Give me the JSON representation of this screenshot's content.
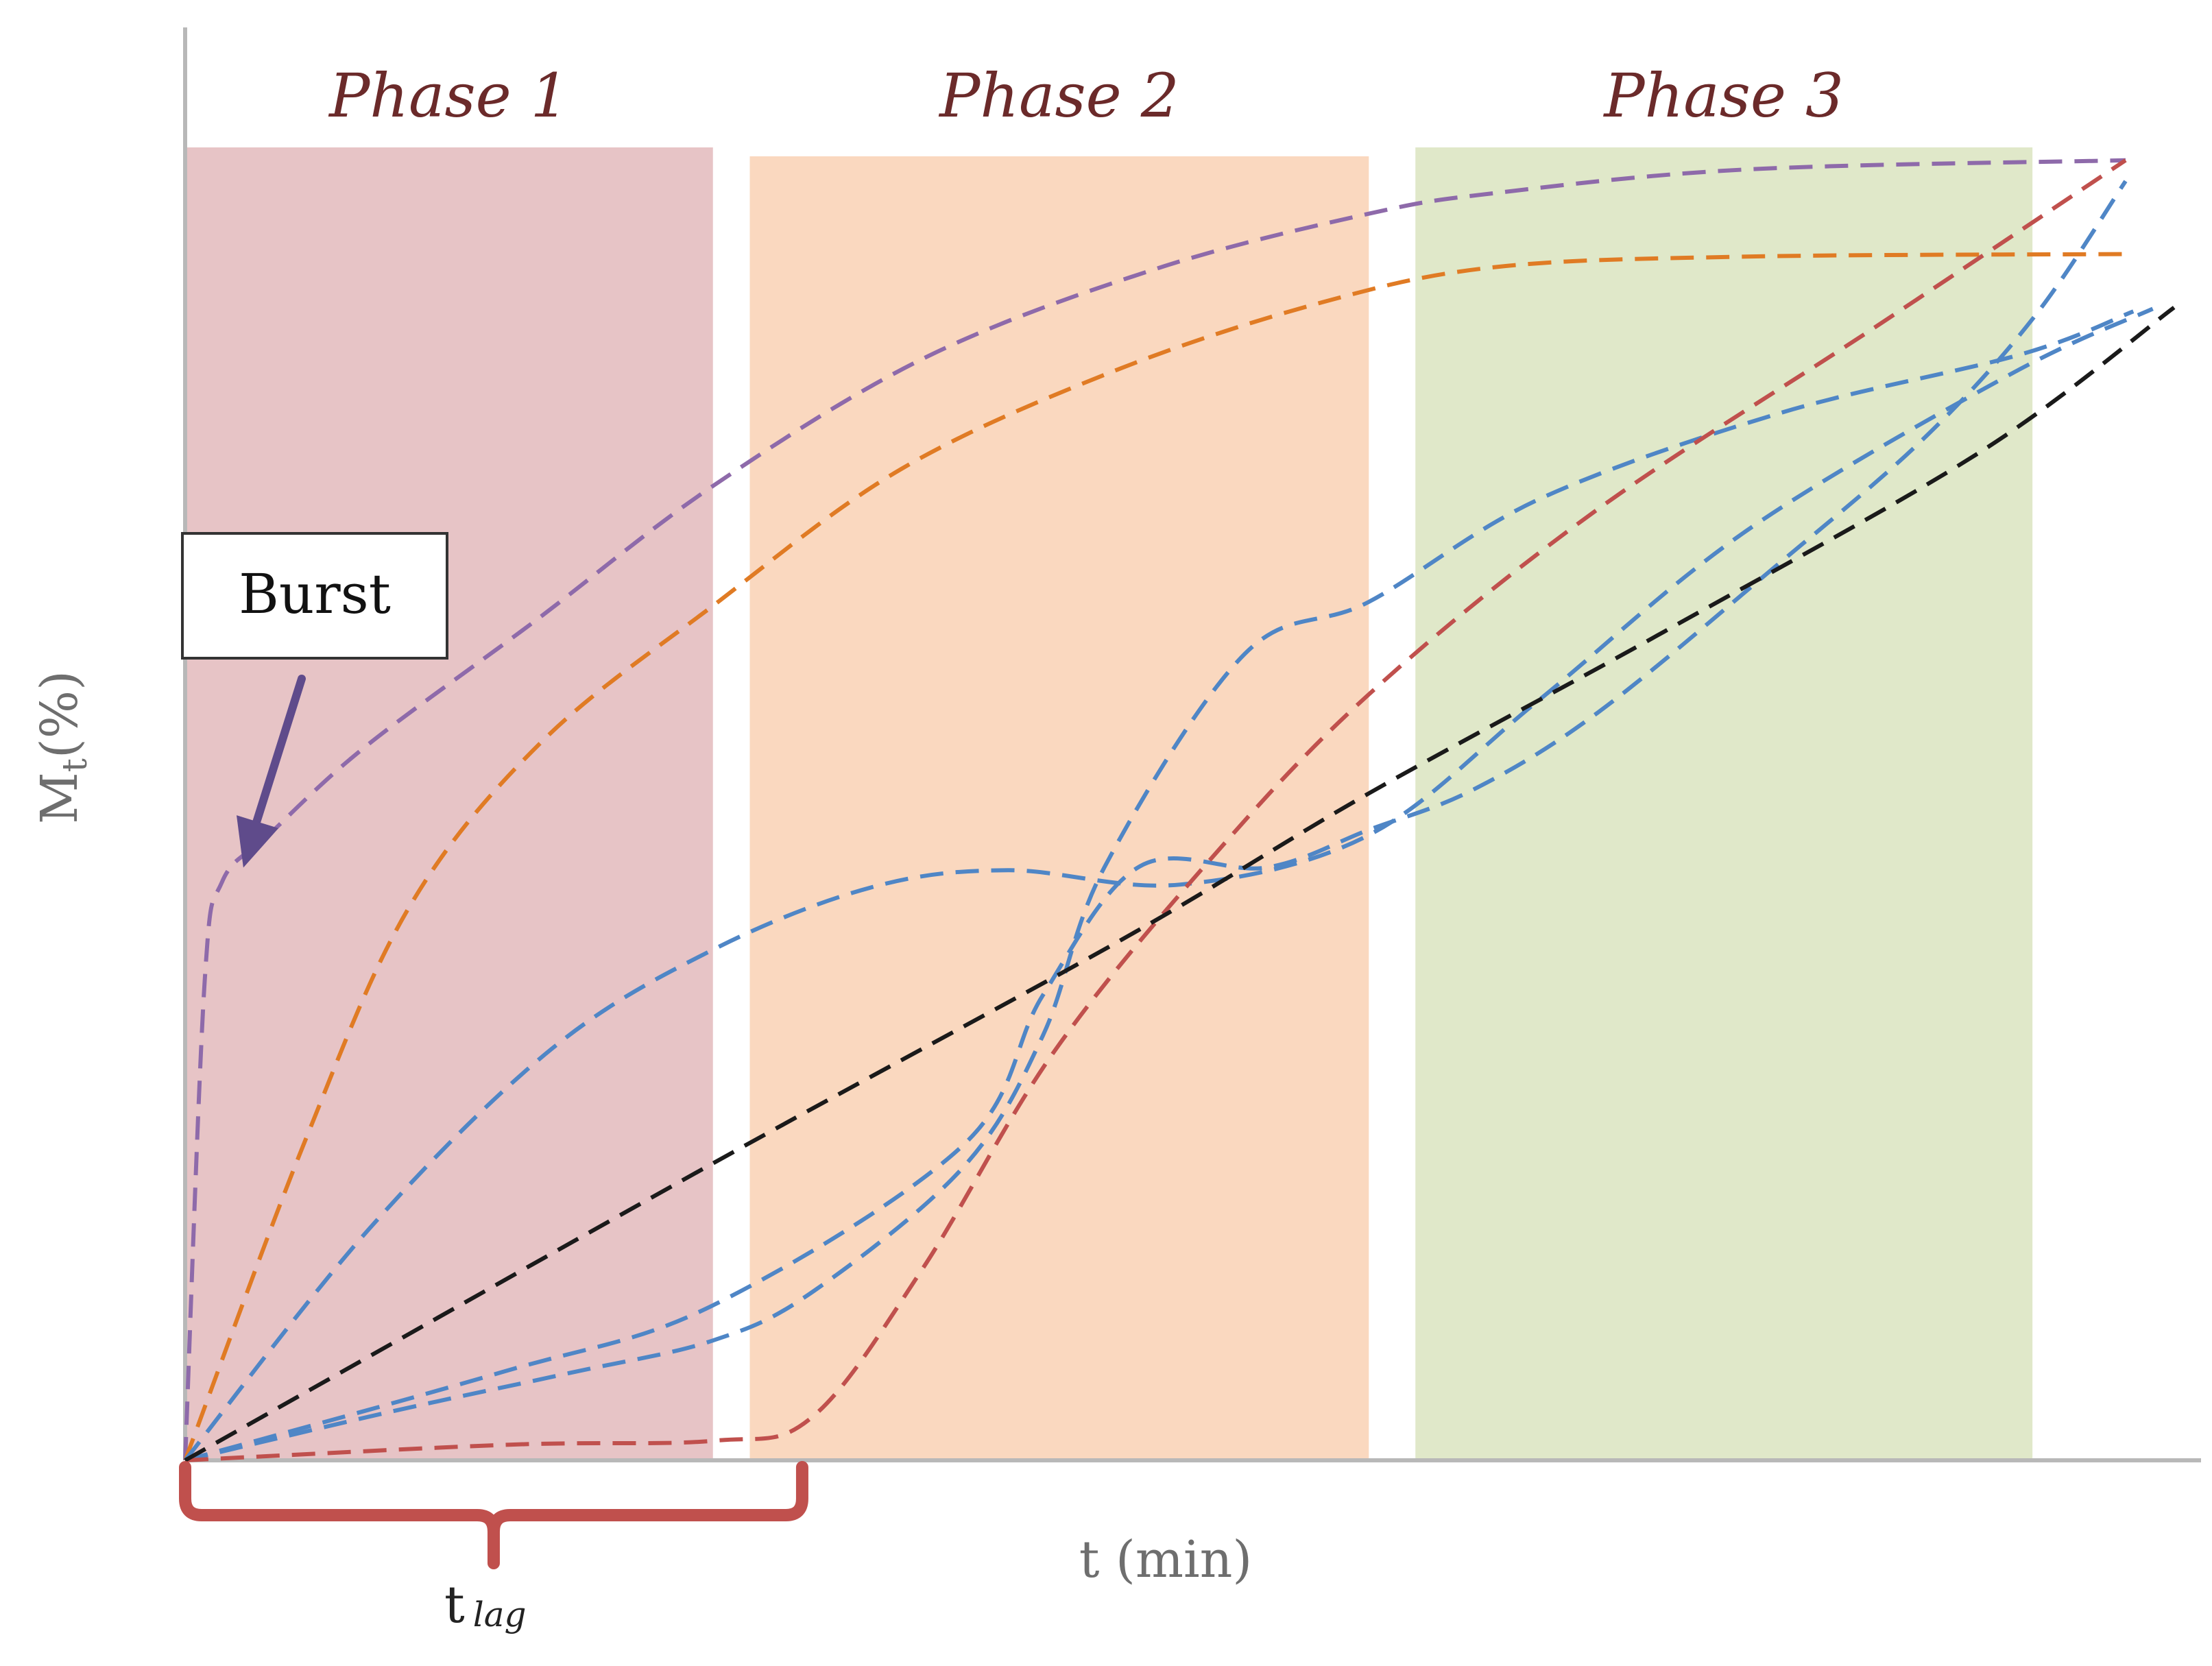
{
  "chart_data": {
    "type": "line",
    "title": "",
    "xlabel": "t (min)",
    "ylabel": {
      "main": "M",
      "sub": "t",
      "unit": "(%)"
    },
    "xlim": [
      0,
      100
    ],
    "ylim": [
      0,
      100
    ],
    "grid": false,
    "legend": "none",
    "phases": [
      {
        "label": "Phase 1",
        "x_start": 0,
        "x_end": 27.2,
        "color": "#e7c4c6"
      },
      {
        "label": "Phase 2",
        "x_start": 29.1,
        "x_end": 61.0,
        "color": "#fad8bf"
      },
      {
        "label": "Phase 3",
        "x_start": 63.4,
        "x_end": 95.2,
        "color": "#e0e8c9"
      }
    ],
    "annotations": {
      "burst": {
        "label": "Burst",
        "x": 3.0,
        "y": 45.5
      },
      "lag": {
        "label_main": "t",
        "label_sub": "lag",
        "x_start": 0,
        "x_end": 31.8
      }
    },
    "series": [
      {
        "color": "#8e6aaa",
        "x": [
          0,
          1.0,
          1.9,
          4.3,
          9.3,
          18.0,
          27.2,
          38.2,
          50.1,
          61.0,
          67.6,
          80.5,
          100.0
        ],
        "y": [
          0,
          36.6,
          44.4,
          48.0,
          54.8,
          64.4,
          74.8,
          84.7,
          91.5,
          95.7,
          97.3,
          99.1,
          99.8
        ]
      },
      {
        "color": "#e07b24",
        "x": [
          0,
          6.2,
          11.6,
          18.4,
          27.2,
          36.9,
          48.0,
          58.6,
          67.5,
          80.2,
          100.0
        ],
        "y": [
          0,
          24.6,
          42.6,
          55.2,
          65.6,
          76.1,
          83.7,
          88.9,
          91.6,
          92.4,
          92.6
        ]
      },
      {
        "color": "#4f86c6",
        "x": [
          0,
          9.5,
          18.9,
          27.2,
          35.4,
          42.4,
          51.3,
          61.0,
          69.8,
          80.5,
          94.1,
          101.4
        ],
        "y": [
          0,
          17.8,
          31.6,
          39.2,
          44.0,
          45.3,
          44.2,
          48.0,
          58.4,
          71.4,
          83.4,
          88.4
        ]
      },
      {
        "color": "#4f86c6",
        "x": [
          0,
          10.5,
          19.8,
          27.2,
          32.4,
          40.1,
          44.2,
          47.4,
          54.6,
          61.0,
          69.8,
          82.2,
          94.6,
          100.4
        ],
        "y": [
          0,
          3.7,
          6.7,
          9.2,
          13.0,
          22.5,
          32.6,
          45.6,
          61.9,
          65.9,
          73.8,
          80.4,
          84.9,
          88.2
        ]
      },
      {
        "color": "#4f86c6",
        "x": [
          0,
          16.4,
          27.2,
          40.1,
          44.2,
          49.2,
          55.7,
          61.0,
          66.4,
          72.8,
          81.7,
          89.5,
          95.3,
          100.0
        ],
        "y": [
          0,
          6.8,
          11.9,
          24.2,
          35.7,
          45.6,
          45.5,
          48.4,
          51.5,
          57.4,
          68.3,
          78.3,
          87.8,
          98.2
        ]
      },
      {
        "color": "#c0504d",
        "x": [
          0,
          16.7,
          27.2,
          32.3,
          38.0,
          44.7,
          52.7,
          61.0,
          72.6,
          87.0,
          100.0
        ],
        "y": [
          0,
          1.2,
          1.5,
          3.3,
          14.7,
          31.2,
          45.9,
          58.8,
          72.8,
          86.9,
          99.8
        ]
      },
      {
        "color": "#1a1a1a",
        "x": [
          0,
          27.2,
          48.3,
          61.0,
          76.2,
          92.5,
          102.5
        ],
        "y": [
          0,
          22.8,
          40.0,
          51.2,
          63.6,
          77.4,
          88.5
        ]
      }
    ]
  }
}
